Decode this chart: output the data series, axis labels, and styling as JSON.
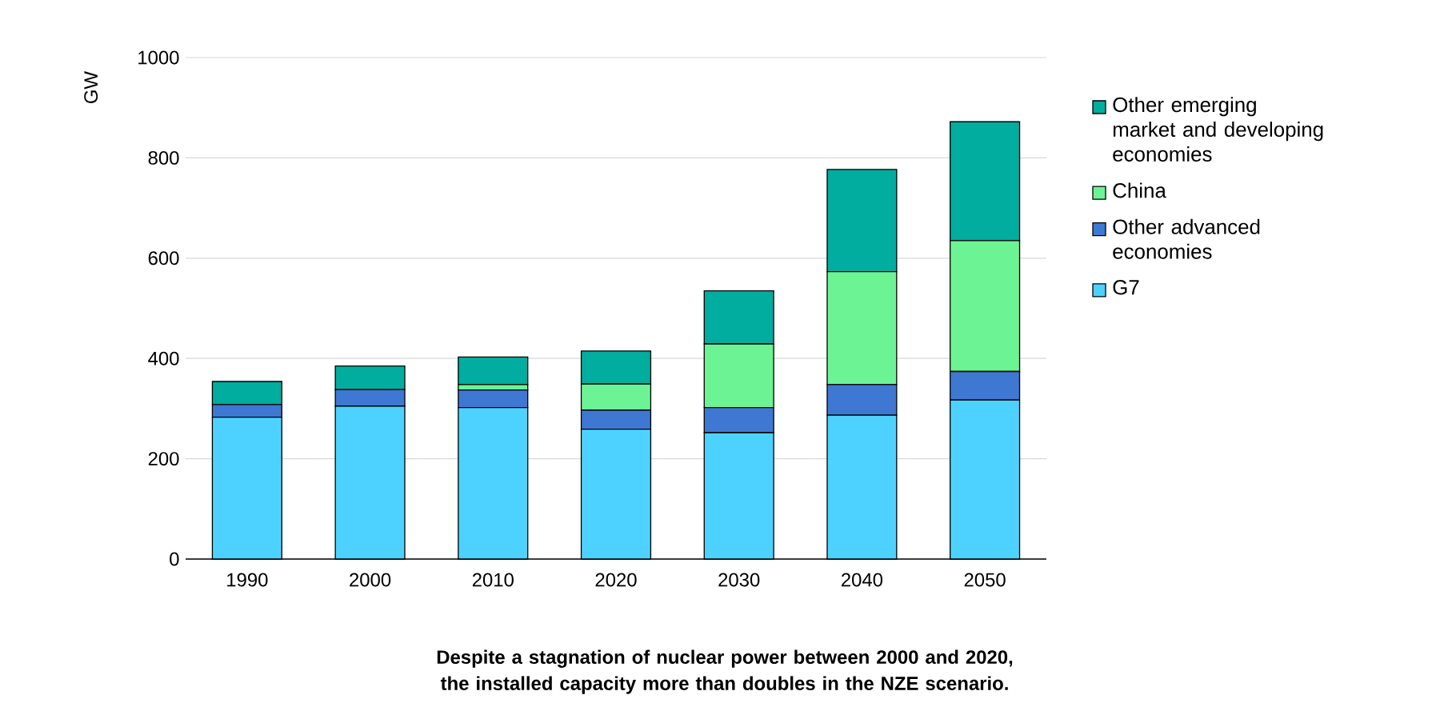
{
  "chart_data": {
    "type": "bar",
    "stacked": true,
    "title": "Despite a stagnation of nuclear power between 2000 and 2020, the installed capacity more than doubles in the NZE scenario.",
    "ylabel": "GW",
    "categories": [
      "1990",
      "2000",
      "2010",
      "2020",
      "2030",
      "2040",
      "2050"
    ],
    "series": [
      {
        "name": "G7",
        "color": "#4dd2ff",
        "values": [
          283,
          305,
          302,
          259,
          252,
          287,
          317
        ]
      },
      {
        "name": "Other advanced economies",
        "color": "#3f78d2",
        "values": [
          25,
          33,
          35,
          38,
          50,
          61,
          57
        ]
      },
      {
        "name": "China",
        "color": "#6cf494",
        "values": [
          0,
          null,
          11,
          52,
          127,
          225,
          261
        ]
      },
      {
        "name": "Other emerging market and developing economies",
        "color": "#00ad9f",
        "values": [
          46,
          47,
          55,
          66,
          106,
          204,
          237
        ]
      }
    ],
    "ylim": [
      0,
      1000
    ],
    "yticks": [
      0,
      200,
      400,
      600,
      800,
      1000
    ],
    "grid": "y",
    "legend": "right"
  }
}
